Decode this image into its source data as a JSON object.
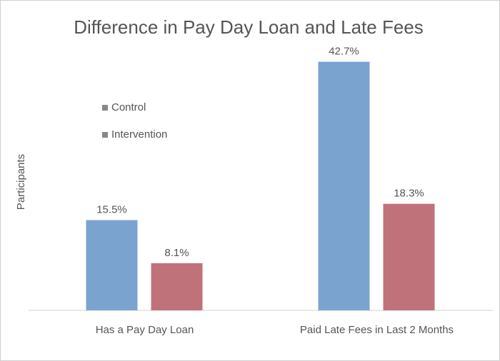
{
  "chart_data": {
    "type": "bar",
    "title": "Difference in Pay Day Loan and Late Fees",
    "y_label": "Participants",
    "categories": [
      "Has a Pay Day Loan",
      "Paid Late Fees in Last 2 Months"
    ],
    "series": [
      {
        "name": "Control",
        "color": "#7ba3cf",
        "values": [
          15.5,
          42.7
        ],
        "value_labels": [
          "15.5%",
          "42.7%"
        ]
      },
      {
        "name": "Intervention",
        "color": "#c0727a",
        "values": [
          8.1,
          18.3
        ],
        "value_labels": [
          "8.1%",
          "18.3%"
        ]
      }
    ],
    "ylim": [
      0,
      50
    ],
    "legend": "upper left"
  }
}
